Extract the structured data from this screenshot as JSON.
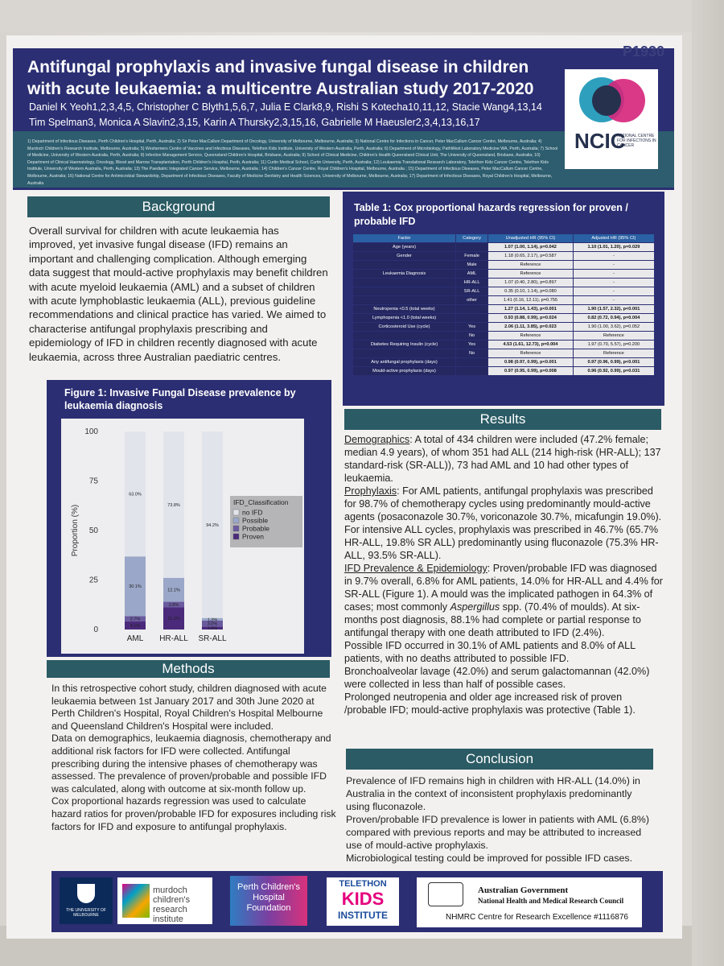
{
  "poster": {
    "id": "P1930",
    "title": "Antifungal prophylaxis and invasive fungal disease in children with acute leukaemia: a multicentre Australian study 2017-2020",
    "authors_line1": "Daniel K Yeoh1,2,3,4,5, Christopher C Blyth1,5,6,7, Julia E Clark8,9, Rishi S Kotecha10,11,12, Stacie Wang4,13,14",
    "authors_line2": "Tim Spelman3, Monica A Slavin2,3,15, Karin A Thursky2,3,15,16, Gabrielle M Haeusler2,3,4,13,16,17",
    "affiliations": "1) Department of Infectious Diseases, Perth Children's Hospital, Perth, Australia; 2) Sir Peter MacCallum Department of Oncology, University of Melbourne, Melbourne, Australia; 3) National Centre for Infections in Cancer, Peter MacCallum Cancer Centre, Melbourne, Australia; 4) Murdoch Children's Research Institute, Melbourne, Australia; 5) Wesfarmers Centre of Vaccines and Infectious Diseases, Telethon Kids Institute, University of Western Australia, Perth, Australia; 6) Department of Microbiology, PathWest Laboratory Medicine WA, Perth, Australia; 7) School of Medicine, University of Western Australia, Perth, Australia; 8) Infection Management Service, Queensland Children's Hospital, Brisbane, Australia; 9) School of Clinical Medicine, Children's Health Queensland Clinical Unit, The University of Queensland, Brisbane, Australia; 10) Department of Clinical Haematology, Oncology, Blood and Marrow Transplantation, Perth Children's Hospital, Perth, Australia; 11) Curtin Medical School, Curtin University, Perth, Australia; 12) Leukaemia Translational Research Laboratory, Telethon Kids Cancer Centre, Telethon Kids Institute, University of Western Australia, Perth, Australia; 13) The Paediatric Integrated Cancer Service, Melbourne, Australia ; 14) Children's Cancer Centre, Royal Children's Hospital, Melbourne, Australia ; 15) Department of Infectious Diseases, Peter MacCallum Cancer Centre, Melbourne, Australia; 16) National Centre for Antimicrobial Stewardship, Department of Infectious Diseases, Faculty of Medicine Dentistry and Health Sciences, University of Melbourne, Melbourne, Australia; 17) Department of Infectious Diseases, Royal Children's Hospital, Melbourne, Australia",
    "ncic_logo": "NCIC",
    "ncic_sub": "NATIONAL CENTRE FOR INFECTIONS IN CANCER"
  },
  "background": {
    "heading": "Background",
    "text": "Overall survival for children with acute leukaemia has improved, yet invasive fungal disease (IFD) remains an important and challenging complication. Although emerging data suggest that mould-active prophylaxis may benefit children with acute myeloid leukaemia (AML) and a subset of children with acute lymphoblastic leukaemia (ALL), previous guideline recommendations and clinical practice has varied. We aimed to characterise antifungal prophylaxis prescribing and epidemiology of IFD in children recently diagnosed with acute leukaemia, across three Australian paediatric centres."
  },
  "figure1": {
    "title": "Figure 1: Invasive Fungal Disease prevalence by leukaemia diagnosis"
  },
  "chart_data": {
    "type": "bar",
    "stacked": true,
    "categories": [
      "AML",
      "HR-ALL",
      "SR-ALL"
    ],
    "ylabel": "Proportion (%)",
    "ylim": [
      0,
      100
    ],
    "yticks": [
      "0",
      "25",
      "50",
      "75",
      "100"
    ],
    "legend_title": "IFD_Classification",
    "series": [
      {
        "name": "Proven",
        "color": "#4b2a7b",
        "values": [
          4.1,
          11.2,
          1.5
        ],
        "labels": [
          "4.1%",
          "11.2%",
          "1.5%"
        ]
      },
      {
        "name": "Probable",
        "color": "#6a5a9e",
        "values": [
          2.7,
          2.8,
          3.0
        ],
        "labels": [
          "2.7%",
          "2.8%",
          "3.0%"
        ]
      },
      {
        "name": "Possible",
        "color": "#9aa7c8",
        "values": [
          30.1,
          12.1,
          1.3
        ],
        "labels": [
          "30.1%",
          "12.1%",
          "1.3%"
        ]
      },
      {
        "name": "no IFD",
        "color": "#e2e4ec",
        "values": [
          63.0,
          73.8,
          94.2
        ],
        "labels": [
          "63.0%",
          "73.8%",
          "94.2%"
        ]
      }
    ]
  },
  "methods": {
    "heading": "Methods",
    "p1": "In this retrospective cohort study, children diagnosed with acute leukaemia between 1st January 2017 and 30th June 2020 at Perth Children's Hospital, Royal Children's Hospital Melbourne and Queensland Children's Hospital were included.",
    "p2": "Data on demographics, leukaemia diagnosis, chemotherapy and additional risk factors for IFD were collected. Antifungal prescribing during the intensive phases of chemotherapy was assessed. The prevalence of proven/probable and possible IFD was calculated, along with outcome at six-month follow up.",
    "p3": "Cox proportional hazards regression was used to calculate hazard ratios for proven/probable IFD for exposures including risk factors for IFD and exposure to antifungal prophylaxis."
  },
  "table1": {
    "title": "Table 1: Cox proportional hazards regression for proven / probable IFD",
    "headers": [
      "Factor",
      "Category",
      "Unadjusted HR (95% CI)",
      "Adjusted HR (95% CI)"
    ],
    "rows": [
      [
        "Age (years)",
        "",
        "1.07 (1.00, 1.14), p=0.042",
        "1.10 (1.01, 1.20), p=0.029"
      ],
      [
        "Gender",
        "Female",
        "1.18 (0.65, 2.17), p=0.587",
        "-"
      ],
      [
        "",
        "Male",
        "Reference",
        "-"
      ],
      [
        "Leukaemia Diagnosis",
        "AML",
        "Reference",
        "-"
      ],
      [
        "",
        "HR-ALL",
        "1.07 (0.40, 2.80), p=0.897",
        "-"
      ],
      [
        "",
        "SR-ALL",
        "0.35 (0.10, 1.14), p=0.080",
        "-"
      ],
      [
        "",
        "other",
        "1.41 (0.16, 12.11), p=0.755",
        "-"
      ],
      [
        "Neutropenia <0.5 (total weeks)",
        "",
        "1.27 (1.14, 1.43), p<0.001",
        "1.90 (1.57, 2.32), p<0.001"
      ],
      [
        "Lymphopenia <1.0 (total weeks)",
        "",
        "0.93 (0.88, 0.99), p=0.024",
        "0.82 (0.72, 0.94), p=0.004"
      ],
      [
        "Corticosteroid Use (cycle)",
        "Yes",
        "2.06 (1.11, 3.85), p=0.023",
        "1.90 (1.00, 3.62), p=0.052"
      ],
      [
        "",
        "No",
        "Reference",
        "Reference"
      ],
      [
        "Diabetes Requiring Insulin (cycle)",
        "Yes",
        "4.53 (1.61, 12.73), p=0.004",
        "1.97 (0.70, 5.57), p=0.200"
      ],
      [
        "",
        "No",
        "Reference",
        "Reference"
      ],
      [
        "Any antifungal prophylaxis (days)",
        "",
        "0.98 (0.97, 0.99), p<0.001",
        "0.97 (0.96, 0.99), p<0.001"
      ],
      [
        "Mould-active prophylaxis (days)",
        "",
        "0.97 (0.95, 0.99), p=0.008",
        "0.96 (0.92, 0.99), p=0.031"
      ]
    ]
  },
  "results": {
    "heading": "Results",
    "demographics_label": "Demographics",
    "demographics": ": A total of 434 children were included (47.2% female; median 4.9 years), of whom 351 had ALL (214 high-risk (HR-ALL); 137 standard-risk (SR-ALL)), 73 had AML and 10 had other types of leukaemia.",
    "prophylaxis_label": "Prophylaxis",
    "prophylaxis": ": For AML patients, antifungal prophylaxis was prescribed for 98.7% of chemotherapy cycles using predominantly mould-active agents (posaconazole 30.7%, voriconazole 30.7%, micafungin 19.0%). For intensive ALL cycles, prophylaxis was prescribed in 46.7% (65.7% HR-ALL, 19.8% SR ALL) predominantly using fluconazole (75.3% HR-ALL, 93.5% SR-ALL).",
    "ifd_label": "IFD Prevalence & Epidemiology",
    "ifd_a": ": Proven/probable IFD was diagnosed in 9.7% overall, 6.8% for AML patients, 14.0% for HR-ALL and 4.4% for SR-ALL (Figure 1). A mould was the implicated pathogen in 64.3% of cases; most commonly ",
    "ifd_italic": "Aspergillus",
    "ifd_b": " spp. (70.4% of moulds). At six-months post diagnosis, 88.1% had complete or partial response to antifungal therapy with one death attributed to IFD (2.4%).",
    "possible": "Possible IFD occurred in 30.1% of AML patients and 8.0% of ALL patients, with no deaths attributed to possible IFD.",
    "bal": "Bronchoalveolar lavage (42.0%) and serum galactomannan (42.0%) were collected in less than half of possible cases.",
    "prolonged": "Prolonged neutropenia and older age increased risk of proven /probable IFD; mould-active prophylaxis was protective (Table 1)."
  },
  "conclusion": {
    "heading": "Conclusion",
    "p1": "Prevalence of IFD remains high in children with HR-ALL (14.0%) in Australia in the context of inconsistent prophylaxis predominantly using fluconazole.",
    "p2": "Proven/probable IFD prevalence is lower in patients with AML (6.8%) compared with previous reports and may be attributed to increased use of mould-active prophylaxis.",
    "p3": "Microbiological testing could be improved for possible IFD cases."
  },
  "logos": {
    "melbourne": "THE UNIVERSITY OF MELBOURNE",
    "mcri": "murdoch children's research institute",
    "perth": "Perth Children's Hospital Foundation",
    "telethon_1": "TELETHON",
    "telethon_2": "KIDS",
    "telethon_3": "INSTITUTE",
    "gov_1": "Australian Government",
    "gov_2": "National Health and Medical Research Council",
    "gov_3": "NHMRC Centre for Research Excellence #1116876"
  }
}
